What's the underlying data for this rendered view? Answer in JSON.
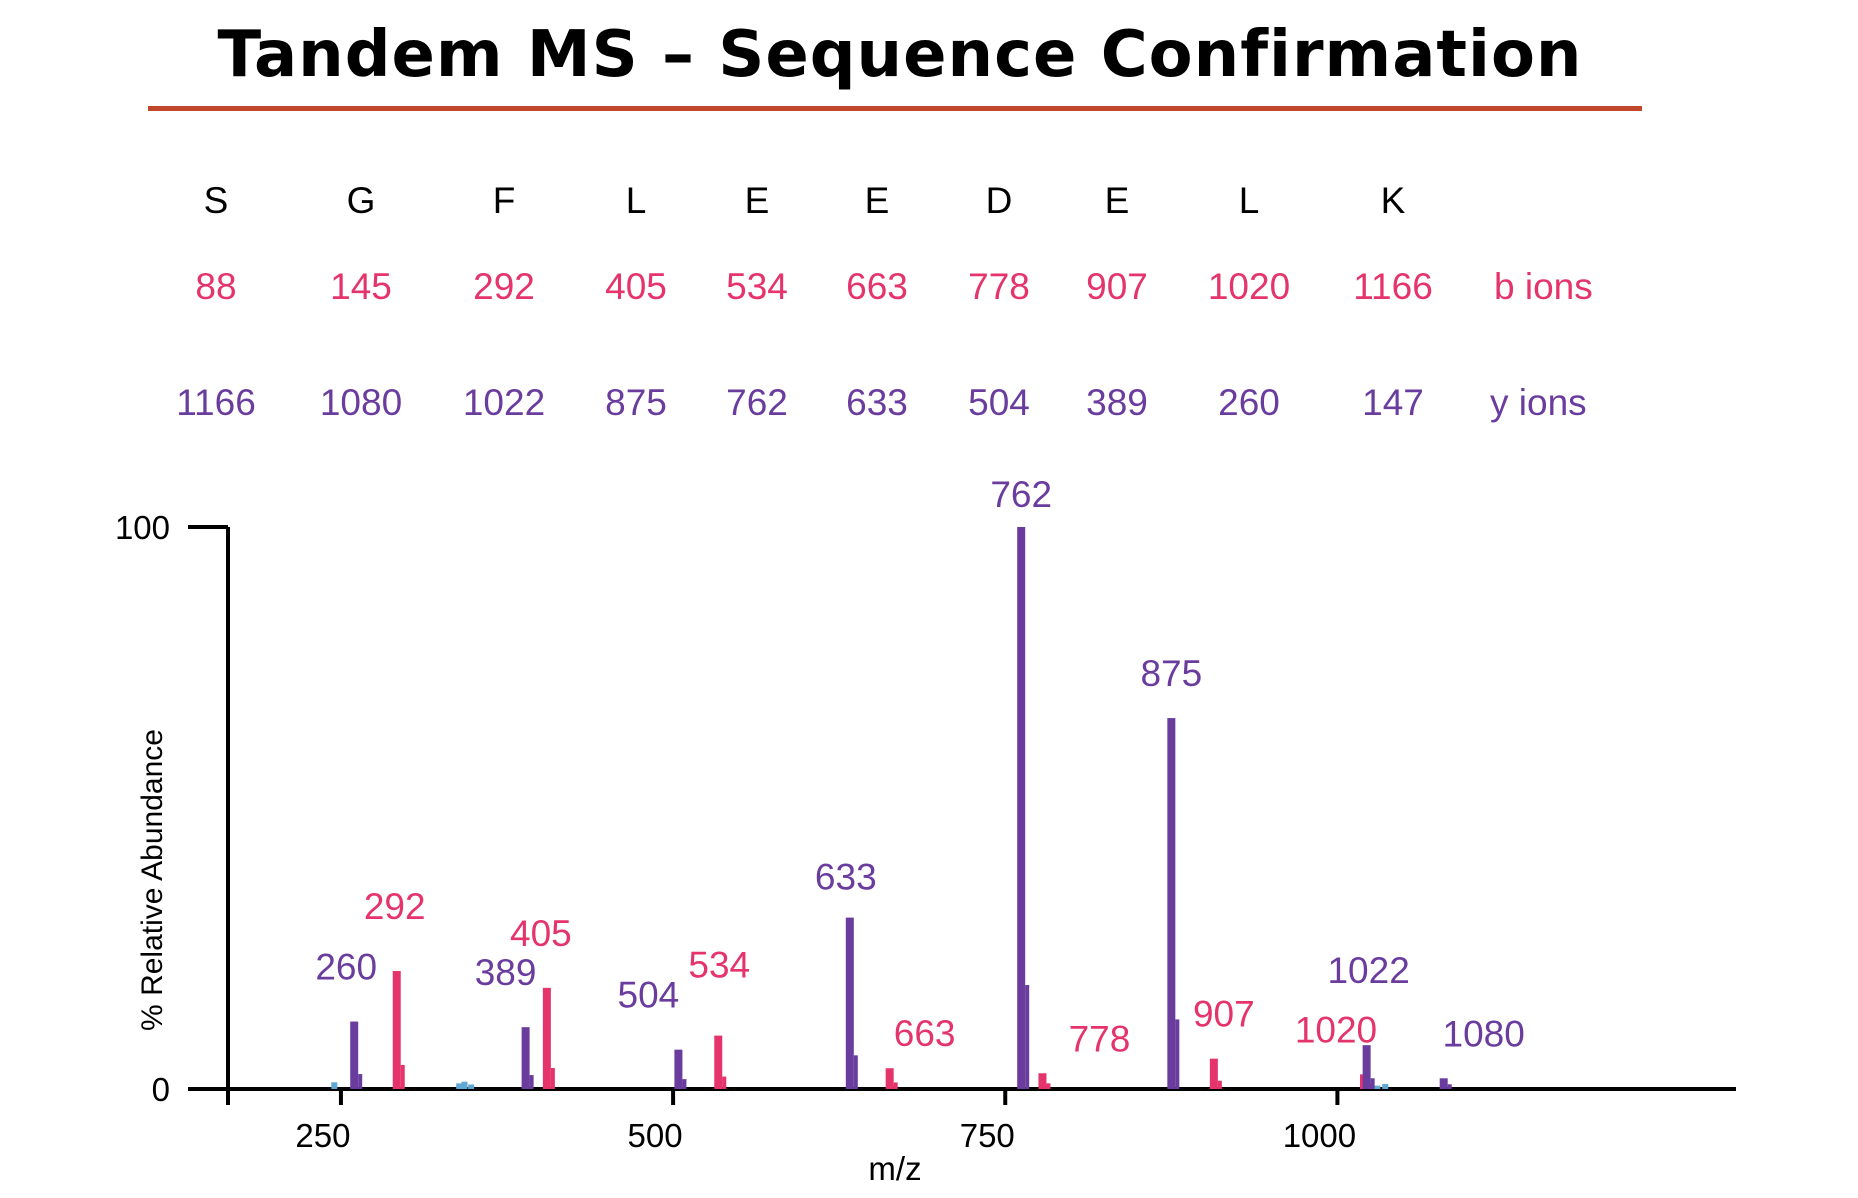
{
  "title": "Tandem MS – Sequence Confirmation",
  "sequence": {
    "residues": [
      "S",
      "G",
      "F",
      "L",
      "E",
      "E",
      "D",
      "E",
      "L",
      "K"
    ],
    "b_ions": [
      "88",
      "145",
      "292",
      "405",
      "534",
      "663",
      "778",
      "907",
      "1020",
      "1166"
    ],
    "y_ions": [
      "1166",
      "1080",
      "1022",
      "875",
      "762",
      "633",
      "504",
      "389",
      "260",
      "147"
    ],
    "b_label": "b ions",
    "y_label": "y ions"
  },
  "colors": {
    "b_ion": "#e4346b",
    "y_ion": "#6a3c9e",
    "minor": "#5fa8d3",
    "title_rule": "#c0472a"
  },
  "chart_data": {
    "type": "bar",
    "xlabel": "m/z",
    "ylabel": "% Relative Abundance",
    "xlim": [
      165,
      1300
    ],
    "ylim": [
      0,
      100
    ],
    "x_ticks": [
      250,
      500,
      750,
      1000
    ],
    "y_ticks": [
      0,
      100
    ],
    "grid": false,
    "series": [
      {
        "name": "b ions",
        "points": [
          {
            "x": 292,
            "y": 21,
            "label": "292"
          },
          {
            "x": 405,
            "y": 18,
            "label": "405"
          },
          {
            "x": 534,
            "y": 9.5,
            "label": "534"
          },
          {
            "x": 663,
            "y": 3.7,
            "label": "663"
          },
          {
            "x": 778,
            "y": 2.8,
            "label": "778"
          },
          {
            "x": 907,
            "y": 5.4,
            "label": "907"
          },
          {
            "x": 1020,
            "y": 2.6,
            "label": "1020"
          }
        ]
      },
      {
        "name": "y ions",
        "points": [
          {
            "x": 260,
            "y": 12,
            "label": "260"
          },
          {
            "x": 389,
            "y": 11,
            "label": "389"
          },
          {
            "x": 504,
            "y": 7,
            "label": "504"
          },
          {
            "x": 633,
            "y": 30.5,
            "label": "633"
          },
          {
            "x": 762,
            "y": 100,
            "label": "762"
          },
          {
            "x": 875,
            "y": 66,
            "label": "875"
          },
          {
            "x": 1022,
            "y": 7.8,
            "label": "1022"
          },
          {
            "x": 1080,
            "y": 1.9,
            "label": "1080"
          }
        ]
      }
    ]
  }
}
